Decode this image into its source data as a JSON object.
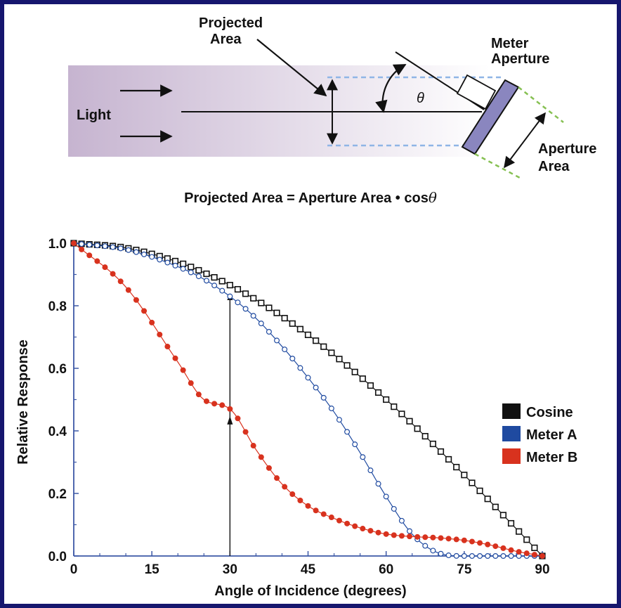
{
  "diagram": {
    "light_label": "Light",
    "projected_area_label_line1": "Projected",
    "projected_area_label_line2": "Area",
    "meter_aperture_label_line1": "Meter",
    "meter_aperture_label_line2": "Aperture",
    "aperture_area_label_line1": "Aperture",
    "aperture_area_label_line2": "Area",
    "theta_symbol": "θ",
    "equation_text": "Projected Area = Aperture Area • cos",
    "equation_theta": "θ",
    "colors": {
      "beam_left": "#c6b4d0",
      "beam_right": "#ffffff",
      "meter_body": "#8a86bf",
      "projected_dash": "#8fb5e6",
      "aperture_dash": "#86c052"
    }
  },
  "chart_data": {
    "type": "line",
    "xlabel": "Angle of Incidence (degrees)",
    "ylabel": "Relative Response",
    "xlim": [
      0,
      90
    ],
    "ylim": [
      0,
      1.0
    ],
    "xticks": [
      0,
      15,
      30,
      45,
      60,
      75,
      90
    ],
    "xtick_labels": [
      "0",
      "15",
      "30",
      "45",
      "60",
      "75",
      "90"
    ],
    "yticks": [
      0,
      0.2,
      0.4,
      0.6,
      0.8,
      1.0
    ],
    "ytick_labels": [
      "0.0",
      "0.2",
      "0.4",
      "0.6",
      "0.8",
      "1.0"
    ],
    "grid": false,
    "legend_position": "right",
    "annotation": {
      "type": "arrow",
      "x": 30,
      "y_from": 0,
      "y_to": 0.83,
      "note": "arrow at 30 degrees with markers at Meter B and Meter A values"
    },
    "x": [
      0,
      10,
      20,
      25,
      30,
      35,
      40,
      45,
      50,
      55,
      60,
      65,
      70,
      75,
      80,
      85,
      90
    ],
    "series": [
      {
        "name": "Cosine",
        "color": "#111111",
        "marker": "square-open",
        "values": [
          1.0,
          0.985,
          0.94,
          0.906,
          0.866,
          0.819,
          0.766,
          0.707,
          0.643,
          0.574,
          0.5,
          0.423,
          0.342,
          0.259,
          0.174,
          0.087,
          0.0
        ]
      },
      {
        "name": "Meter A",
        "color": "#1f4aa0",
        "marker": "circle-open",
        "values": [
          1.0,
          0.98,
          0.925,
          0.885,
          0.83,
          0.76,
          0.67,
          0.57,
          0.46,
          0.33,
          0.19,
          0.07,
          0.01,
          0.0,
          0.0,
          0.0,
          0.0
        ]
      },
      {
        "name": "Meter B",
        "color": "#d8321e",
        "marker": "circle-filled",
        "values": [
          1.0,
          0.86,
          0.62,
          0.5,
          0.47,
          0.34,
          0.23,
          0.16,
          0.12,
          0.09,
          0.07,
          0.062,
          0.058,
          0.05,
          0.035,
          0.015,
          0.0
        ]
      }
    ]
  }
}
